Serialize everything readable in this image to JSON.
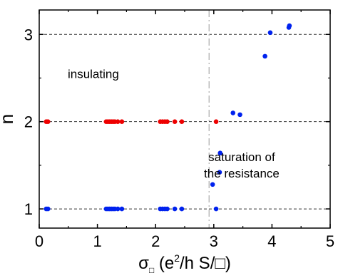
{
  "chart_data": {
    "type": "scatter",
    "xlabel": {
      "sigma": "σ",
      "sub": "□",
      "open": " (e",
      "sup": "2",
      "rest": "/h S/□)"
    },
    "ylabel": "n",
    "xlim": [
      0,
      5
    ],
    "ylim": [
      0.78,
      3.28
    ],
    "xticks": [
      0,
      1,
      2,
      3,
      4,
      5
    ],
    "yticks": [
      1,
      2,
      3
    ],
    "xtick_labels": [
      "0",
      "1",
      "2",
      "3",
      "4",
      "5"
    ],
    "ytick_labels": [
      "1",
      "2",
      "3"
    ],
    "grid": "dashed horizontal lines at n = 1, 2, 3",
    "vline": {
      "x": 2.92,
      "style": "dash-dot",
      "color": "#bbbbbb"
    },
    "annotations": [
      {
        "text": "insulating",
        "x": 0.93,
        "y": 2.5
      },
      {
        "text": "saturation of",
        "x": 3.48,
        "y": 1.55
      },
      {
        "text": "the resistance",
        "x": 3.48,
        "y": 1.36
      }
    ],
    "series": [
      {
        "color": "#ee0000",
        "x": [
          0.12,
          0.15,
          1.15,
          1.18,
          1.21,
          1.24,
          1.27,
          1.3,
          1.35,
          1.42,
          2.08,
          2.12,
          2.16,
          2.2,
          2.33,
          2.45,
          3.04
        ],
        "y": [
          2,
          2,
          2,
          2,
          2,
          2,
          2,
          2,
          2,
          2,
          2,
          2,
          2,
          2,
          2,
          2,
          2
        ]
      },
      {
        "color": "#0022ee",
        "x": [
          0.12,
          0.15,
          1.15,
          1.18,
          1.21,
          1.24,
          1.27,
          1.3,
          1.35,
          1.42,
          2.08,
          2.12,
          2.16,
          2.2,
          2.33,
          2.45,
          3.04,
          2.98,
          3.1,
          3.11,
          3.33,
          3.45,
          3.88,
          3.97,
          4.29,
          4.3
        ],
        "y": [
          1,
          1,
          1,
          1,
          1,
          1,
          1,
          1,
          1,
          1,
          1,
          1,
          1,
          1,
          1,
          1,
          1,
          1.28,
          1.42,
          1.64,
          2.1,
          2.08,
          2.75,
          3.02,
          3.08,
          3.1
        ]
      }
    ]
  }
}
